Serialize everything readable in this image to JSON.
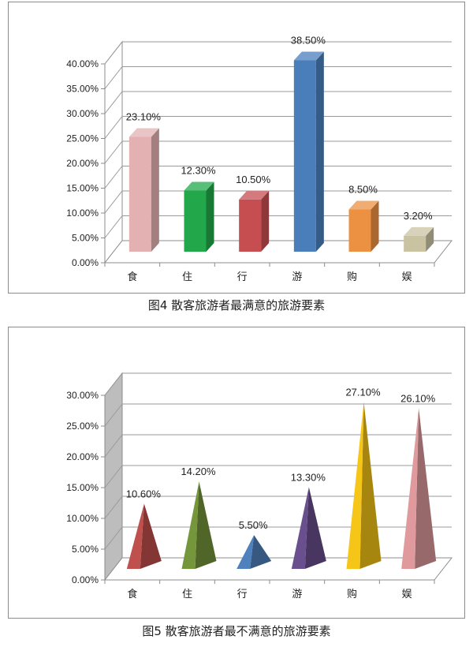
{
  "chart_data": [
    {
      "type": "bar",
      "style": "3d-column",
      "categories": [
        "食",
        "住",
        "行",
        "游",
        "购",
        "娱"
      ],
      "values": [
        23.1,
        12.3,
        10.5,
        38.5,
        8.5,
        3.2
      ],
      "data_labels": [
        "23.10%",
        "12.30%",
        "10.50%",
        "38.50%",
        "8.50%",
        "3.20%"
      ],
      "colors": [
        "#e3b1b1",
        "#22a84a",
        "#c64e50",
        "#4a7ebb",
        "#ec9142",
        "#c9c3a2"
      ],
      "ylim": [
        0,
        40
      ],
      "yticks": [
        "0.00%",
        "5.00%",
        "10.00%",
        "15.00%",
        "20.00%",
        "25.00%",
        "30.00%",
        "35.00%",
        "40.00%"
      ],
      "grid": true,
      "caption": "图4 散客旅游者最满意的旅游要素"
    },
    {
      "type": "bar",
      "style": "3d-pyramid",
      "categories": [
        "食",
        "住",
        "行",
        "游",
        "购",
        "娱"
      ],
      "values": [
        10.6,
        14.2,
        5.5,
        13.3,
        27.1,
        26.1
      ],
      "data_labels": [
        "10.60%",
        "14.20%",
        "5.50%",
        "13.30%",
        "27.10%",
        "26.10%"
      ],
      "colors": [
        "#c0504d",
        "#76963b",
        "#4f81bd",
        "#6a4f8e",
        "#f5c518",
        "#e09a9e"
      ],
      "ylim": [
        0,
        30
      ],
      "yticks": [
        "0.00%",
        "5.00%",
        "10.00%",
        "15.00%",
        "20.00%",
        "25.00%",
        "30.00%"
      ],
      "grid": true,
      "caption": "图5 散客旅游者最不满意的旅游要素"
    }
  ]
}
